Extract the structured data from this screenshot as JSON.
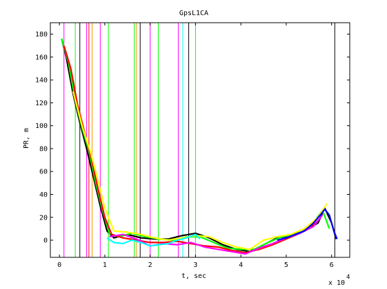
{
  "chart_data": {
    "type": "line",
    "title": "GpsL1CA",
    "xlabel": "t, sec",
    "ylabel": "PR, m",
    "x_exponent_label": "x 10",
    "x_exponent_power": "4",
    "xlim": [
      -0.2,
      6.4
    ],
    "ylim": [
      -15,
      190
    ],
    "x_ticks": [
      0,
      1,
      2,
      3,
      4,
      5,
      6
    ],
    "x_tick_labels": [
      "0",
      "1",
      "2",
      "3",
      "4",
      "5",
      "6"
    ],
    "y_ticks": [
      0,
      20,
      40,
      60,
      80,
      100,
      120,
      140,
      160,
      180
    ],
    "y_tick_labels": [
      "0",
      "20",
      "40",
      "60",
      "80",
      "100",
      "120",
      "140",
      "160",
      "180"
    ],
    "grid": false,
    "legend": "none",
    "vertical_lines": [
      {
        "x": 0.1,
        "color": "#ff00ff"
      },
      {
        "x": 0.35,
        "color": "#00ff00"
      },
      {
        "x": 0.45,
        "color": "#000000"
      },
      {
        "x": 0.6,
        "color": "#ff00ff"
      },
      {
        "x": 0.65,
        "color": "#ff0000"
      },
      {
        "x": 0.72,
        "color": "#ff9900"
      },
      {
        "x": 0.9,
        "color": "#ff00ff"
      },
      {
        "x": 1.08,
        "color": "#00ff00"
      },
      {
        "x": 1.65,
        "color": "#00ff00"
      },
      {
        "x": 1.7,
        "color": "#ff9900"
      },
      {
        "x": 1.78,
        "color": "#000000"
      },
      {
        "x": 2.0,
        "color": "#ff00ff"
      },
      {
        "x": 2.18,
        "color": "#00ff00"
      },
      {
        "x": 2.62,
        "color": "#ff00ff"
      },
      {
        "x": 2.72,
        "color": "#00ffff"
      },
      {
        "x": 2.85,
        "color": "#000000"
      },
      {
        "x": 3.0,
        "color": "#00ff00"
      },
      {
        "x": 6.07,
        "color": "#000000"
      }
    ],
    "series": [
      {
        "color": "#000000",
        "x": [
          0.05,
          0.15,
          0.3,
          0.45,
          0.6,
          0.75,
          0.9,
          1.05,
          1.2,
          1.5,
          1.8,
          2.1,
          2.4,
          2.7,
          3.0,
          3.3,
          3.6,
          3.9,
          4.2,
          4.5,
          4.8,
          5.1,
          5.4,
          5.7,
          5.85,
          6.0,
          6.1
        ],
        "y": [
          176,
          160,
          128,
          103,
          80,
          55,
          30,
          8,
          2,
          5,
          2,
          1,
          1,
          4,
          6,
          2,
          -4,
          -8,
          -10,
          -4,
          2,
          4,
          8,
          15,
          28,
          15,
          1
        ]
      },
      {
        "color": "#00ff00",
        "x": [
          0.05,
          0.2,
          0.35,
          0.5,
          0.65,
          0.8,
          0.95,
          1.1,
          1.3,
          1.6,
          1.9,
          2.2,
          2.5,
          2.8,
          3.1,
          3.4,
          3.7,
          4.0,
          4.3,
          4.6,
          4.9,
          5.2,
          5.5,
          5.8,
          5.95
        ],
        "y": [
          176,
          155,
          122,
          98,
          78,
          50,
          26,
          6,
          3,
          6,
          3,
          1,
          0,
          3,
          3,
          -2,
          -7,
          -8,
          -8,
          -2,
          3,
          5,
          10,
          26,
          10
        ]
      },
      {
        "color": "#ff0000",
        "x": [
          0.1,
          0.25,
          0.4,
          0.55,
          0.7,
          0.85,
          1.0,
          1.15,
          1.4,
          1.7,
          2.0,
          2.3,
          2.6,
          2.9,
          3.2,
          3.5,
          3.8,
          4.1,
          4.4,
          4.7,
          5.0,
          5.3,
          5.6,
          5.8
        ],
        "y": [
          170,
          150,
          118,
          95,
          72,
          45,
          20,
          5,
          2,
          0,
          -2,
          -2,
          -1,
          -3,
          -5,
          -6,
          -9,
          -11,
          -8,
          -4,
          1,
          6,
          14,
          26
        ]
      },
      {
        "color": "#ffff00",
        "x": [
          0.3,
          0.5,
          0.7,
          0.85,
          1.0,
          1.2,
          1.5,
          1.8,
          2.1,
          2.4,
          2.7,
          3.0,
          3.3,
          3.6,
          3.9,
          4.2,
          4.5,
          4.8,
          5.1,
          5.4,
          5.7,
          5.9
        ],
        "y": [
          130,
          100,
          75,
          52,
          28,
          8,
          7,
          5,
          2,
          0,
          2,
          4,
          3,
          -2,
          -6,
          -8,
          0,
          3,
          5,
          10,
          20,
          32
        ]
      },
      {
        "color": "#ff00ff",
        "x": [
          1.1,
          1.4,
          1.7,
          2.0,
          2.3,
          2.6,
          2.9,
          3.2,
          3.5,
          3.8,
          4.1,
          4.4,
          4.7,
          5.0,
          5.3,
          5.6,
          5.8
        ],
        "y": [
          3,
          5,
          1,
          -5,
          -3,
          -4,
          -2,
          -6,
          -8,
          -10,
          -12,
          -7,
          -3,
          2,
          6,
          12,
          22
        ]
      },
      {
        "color": "#0000ff",
        "x": [
          4.8,
          5.0,
          5.2,
          5.4,
          5.6,
          5.75,
          5.85,
          5.95,
          6.05,
          6.12
        ],
        "y": [
          0,
          2,
          5,
          8,
          15,
          22,
          27,
          22,
          8,
          1
        ]
      },
      {
        "color": "#00ffff",
        "x": [
          1.05,
          1.2,
          1.4,
          1.6,
          1.8,
          2.0,
          2.2,
          2.4,
          2.6,
          2.8,
          3.0,
          3.1
        ],
        "y": [
          2,
          -2,
          -3,
          0,
          -2,
          -5,
          -4,
          -3,
          0,
          2,
          5,
          1
        ]
      }
    ]
  }
}
